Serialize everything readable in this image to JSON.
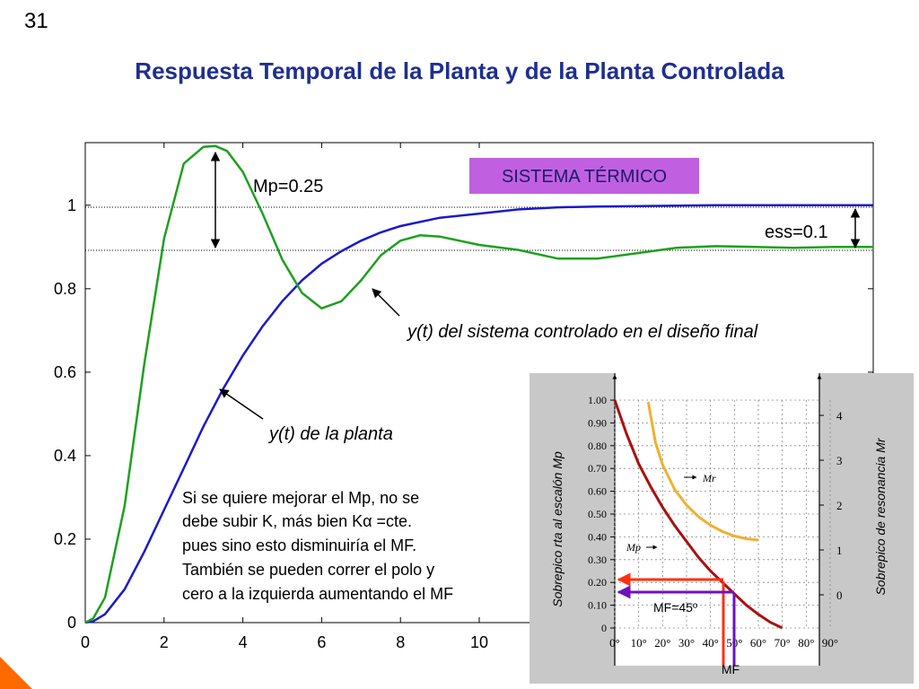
{
  "page": {
    "number": "31",
    "title": "Respuesta Temporal de la Planta y de la Planta Controlada"
  },
  "main_chart": {
    "tag_label": "SISTEMA TÉRMICO",
    "mp_label": "Mp=0.25",
    "ess_label": "ess=0.1",
    "controlled_label": "y(t) del sistema controlado en el diseño final",
    "plant_label": "y(t) de la planta",
    "note_lines": [
      "Si se quiere mejorar el Mp, no se",
      "debe subir K, más bien Kα =cte.",
      "pues sino esto disminuiría el MF.",
      "También se pueden correr el polo y",
      "cero a la izquierda aumentando el MF"
    ]
  },
  "inset_chart": {
    "ylabel_left": "Sobrepico rta al escalón Mp",
    "ylabel_right": "Sobrepico de resonancia Mr",
    "xlabel": "MF",
    "mf_annotation": "MF=45º",
    "curve_label_mr": "Mr",
    "curve_label_mp": "Mp"
  },
  "colors": {
    "title": "#1f2f8f",
    "plant": "#1a1acc",
    "controlled": "#1ea01e",
    "tag_bg": "#c060e0",
    "mp_curve": "#aa1010",
    "mr_curve": "#f0b030",
    "red_arrow": "#ff3010",
    "purple_arrow": "#7010c0",
    "inset_bg": "#c8c8c8",
    "orange_deco": "#ff6a00"
  },
  "chart_data": [
    {
      "type": "line",
      "xlim": [
        0,
        20
      ],
      "ylim": [
        0,
        1.15
      ],
      "xticks": [
        "0",
        "2",
        "4",
        "6",
        "8",
        "10"
      ],
      "yticks": [
        "0",
        "0.2",
        "0.4",
        "0.6",
        "0.8",
        "1"
      ],
      "reference_lines": [
        1.0,
        0.9
      ],
      "series": [
        {
          "name": "y(t) de la planta",
          "x": [
            0,
            0.2,
            0.5,
            1,
            1.5,
            2,
            2.5,
            3,
            3.5,
            4,
            4.5,
            5,
            5.5,
            6,
            6.5,
            7,
            7.5,
            8,
            9,
            10,
            11,
            12,
            13,
            14,
            15,
            16,
            17,
            18,
            19,
            20
          ],
          "y": [
            0,
            0.003,
            0.02,
            0.08,
            0.17,
            0.27,
            0.37,
            0.47,
            0.56,
            0.64,
            0.71,
            0.77,
            0.82,
            0.86,
            0.89,
            0.915,
            0.935,
            0.95,
            0.97,
            0.98,
            0.99,
            0.995,
            0.997,
            0.998,
            0.999,
            1.0,
            1.0,
            1.0,
            1.0,
            1.0
          ]
        },
        {
          "name": "y(t) del sistema controlado en el diseño final",
          "x": [
            0,
            0.2,
            0.5,
            1,
            1.5,
            2,
            2.5,
            3,
            3.3,
            3.6,
            4,
            4.5,
            5,
            5.5,
            6,
            6.5,
            7,
            7.5,
            8,
            8.5,
            9,
            9.5,
            10,
            11,
            12,
            13,
            14,
            15,
            16,
            17,
            18,
            19,
            20
          ],
          "y": [
            0,
            0.01,
            0.06,
            0.28,
            0.62,
            0.92,
            1.1,
            1.14,
            1.142,
            1.13,
            1.08,
            0.98,
            0.87,
            0.79,
            0.753,
            0.77,
            0.82,
            0.88,
            0.915,
            0.928,
            0.925,
            0.915,
            0.905,
            0.893,
            0.872,
            0.872,
            0.885,
            0.898,
            0.902,
            0.9,
            0.898,
            0.9,
            0.9
          ]
        }
      ]
    },
    {
      "type": "line",
      "xlabel": "MF",
      "xlim": [
        0,
        90
      ],
      "ylim": [
        0,
        1.0
      ],
      "xticks": [
        "0°",
        "10°",
        "20°",
        "30°",
        "40°",
        "50°",
        "60°",
        "70°",
        "80°",
        "90°"
      ],
      "yticks_left": [
        "0",
        "0.10",
        "0.20",
        "0.30",
        "0.40",
        "0.50",
        "0.60",
        "0.70",
        "0.80",
        "0.90",
        "1.00"
      ],
      "yticks_right": [
        "0",
        "1",
        "2",
        "3",
        "4"
      ],
      "series": [
        {
          "name": "Mp",
          "x": [
            0,
            5,
            10,
            15,
            20,
            25,
            30,
            35,
            40,
            45,
            50,
            55,
            60,
            65,
            70
          ],
          "y": [
            1.0,
            0.85,
            0.72,
            0.62,
            0.53,
            0.45,
            0.38,
            0.31,
            0.25,
            0.2,
            0.15,
            0.1,
            0.06,
            0.025,
            0.0
          ]
        },
        {
          "name": "Mr",
          "x": [
            14,
            17,
            20,
            25,
            30,
            35,
            40,
            45,
            50,
            55,
            60
          ],
          "y": [
            4.3,
            3.4,
            2.9,
            2.35,
            2.0,
            1.74,
            1.55,
            1.41,
            1.31,
            1.25,
            1.22
          ]
        }
      ],
      "highlight": {
        "MF": 45,
        "Mp": 0.2,
        "Mr": 1.41
      }
    }
  ]
}
